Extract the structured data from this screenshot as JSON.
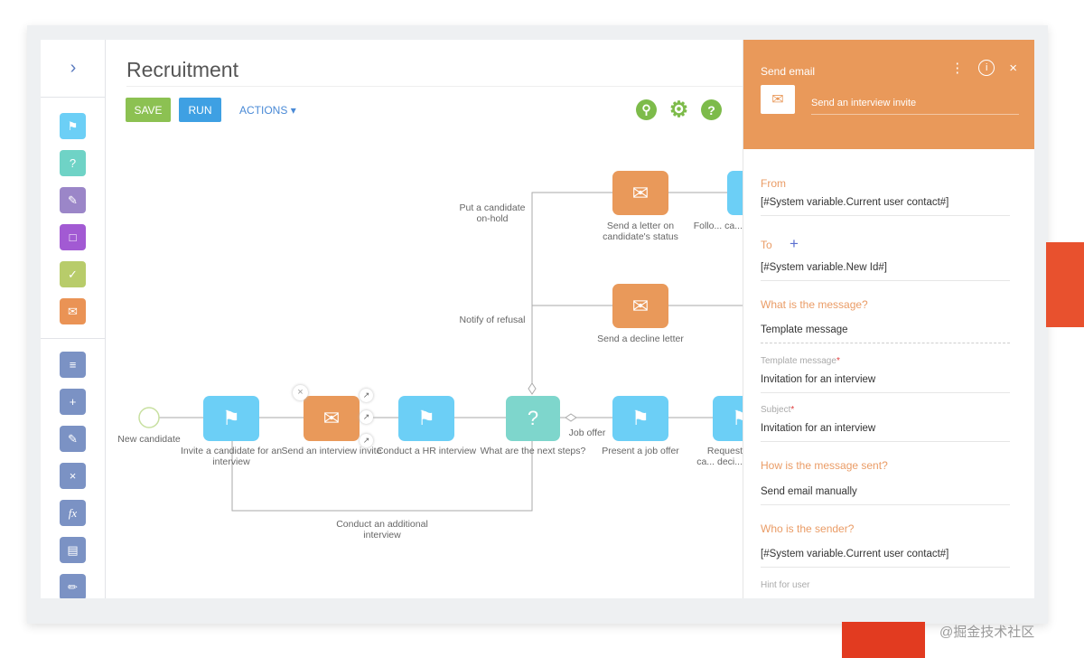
{
  "page": {
    "title": "Recruitment"
  },
  "toolbar": {
    "save_label": "SAVE",
    "run_label": "RUN",
    "actions_label": "ACTIONS",
    "icons": [
      "search-icon",
      "gear-icon",
      "help-icon"
    ]
  },
  "colors": {
    "accent_orange": "#e9995a",
    "user_task_blue": "#6ccff6",
    "question_teal": "#7ed6cc",
    "toolbar_green": "#7dbb4a",
    "save_green": "#8cc152",
    "run_blue": "#3ea0e3"
  },
  "sidebar": {
    "tools": [
      {
        "icon": "flag-icon",
        "color": "#6ccff6"
      },
      {
        "icon": "question-icon",
        "color": "#6fd3c6"
      },
      {
        "icon": "edit-page-icon",
        "color": "#9b86c8"
      },
      {
        "icon": "open-page-icon",
        "color": "#a25ad3"
      },
      {
        "icon": "check-page-icon",
        "color": "#b8cc6a"
      },
      {
        "icon": "send-email-icon",
        "color": "#ea9355"
      },
      {
        "icon": "read-data-icon",
        "color": "#7b92c4"
      },
      {
        "icon": "add-data-icon",
        "color": "#7b92c4"
      },
      {
        "icon": "modify-data-icon",
        "color": "#7b92c4"
      },
      {
        "icon": "delete-data-icon",
        "color": "#7b92c4"
      },
      {
        "icon": "formula-icon",
        "color": "#7b92c4"
      },
      {
        "icon": "access-rights-icon",
        "color": "#7b92c4"
      },
      {
        "icon": "script-icon",
        "color": "#7b92c4"
      }
    ]
  },
  "diagram": {
    "start": "New candidate",
    "nodes": {
      "invite": "Invite a candidate for an interview",
      "send_invite": "Send an interview invite",
      "hr_interview": "Conduct a HR interview",
      "next_steps": "What are the next steps?",
      "job_offer": "Present a job offer",
      "request": "Request ca... deci...",
      "status_letter": "Send a letter on candidate's status",
      "follow": "Follo... ca...",
      "decline": "Send a decline letter"
    },
    "flows": {
      "on_hold": "Put a candidate on-hold",
      "refusal": "Notify of refusal",
      "job_offer": "Job offer",
      "additional": "Conduct an additional interview"
    }
  },
  "panel": {
    "title": "Send email",
    "element_name": "Send an interview invite",
    "from_label": "From",
    "from_value": "[#System variable.Current user contact#]",
    "to_label": "To",
    "to_value": "[#System variable.New Id#]",
    "message_label": "What is the message?",
    "message_value": "Template message",
    "template_label": "Template message",
    "template_value": "Invitation for an interview",
    "subject_label": "Subject",
    "subject_value": "Invitation for an interview",
    "how_label": "How is the message sent?",
    "how_value": "Send email manually",
    "sender_label": "Who is the sender?",
    "sender_value": "[#System variable.Current user contact#]",
    "hint_label": "Hint for user"
  },
  "watermark": "@掘金技术社区"
}
